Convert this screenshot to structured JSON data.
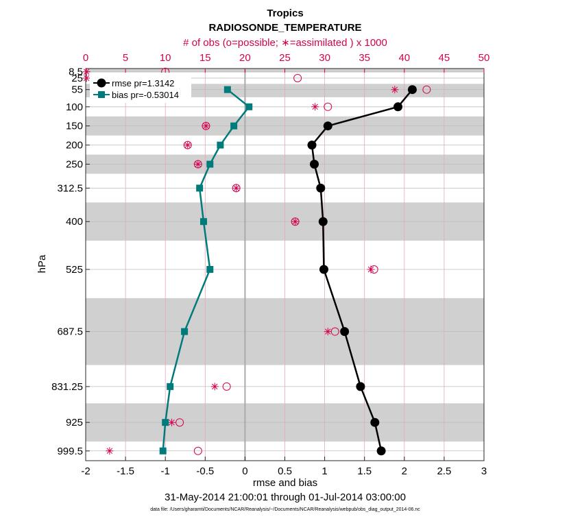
{
  "chart_data": {
    "type": "line",
    "title": "Tropics",
    "subtitle": "RADIOSONDE_TEMPERATURE",
    "top_axis_label": "# of obs (o=possible; ∗=assimilated ) x 1000",
    "xlabel": "rmse and bias",
    "ylabel": "hPa",
    "date_range": "31-May-2014 21:00:01 through 01-Jul-2014 03:00:00",
    "footnote": "data file: /Users/gharamti/Documents/NCAR/Reanalysis/~/Documents/NCAR/Reanalysis/webpub/obs_diag_output_2014-06.nc",
    "xlim": [
      -2,
      3
    ],
    "x_ticks": [
      -2,
      -1.5,
      -1,
      -0.5,
      0,
      0.5,
      1,
      1.5,
      2,
      2.5,
      3
    ],
    "x_tick_labels": [
      "-2",
      "-1.5",
      "-1",
      "-0.5",
      "0",
      "0.5",
      "1",
      "1.5",
      "2",
      "2.5",
      "3"
    ],
    "top_xlim": [
      0,
      50
    ],
    "top_ticks": [
      0,
      5,
      10,
      15,
      20,
      25,
      30,
      35,
      40,
      45,
      50
    ],
    "top_tick_labels": [
      "0",
      "5",
      "10",
      "15",
      "20",
      "25",
      "30",
      "35",
      "40",
      "45",
      "50"
    ],
    "ylim_hPa": [
      1025,
      0
    ],
    "levels": [
      8.5,
      25,
      55,
      100,
      150,
      200,
      250,
      312.5,
      400,
      525,
      687.5,
      831.25,
      925,
      999.5
    ],
    "level_labels": [
      "8.5",
      "25",
      "55",
      "100",
      "150",
      "200",
      "250",
      "312.5",
      "400",
      "525",
      "687.5",
      "831.25",
      "925",
      "999.5"
    ],
    "shaded_bands_hPa": [
      [
        0,
        10
      ],
      [
        40,
        75
      ],
      [
        125,
        175
      ],
      [
        225,
        275
      ],
      [
        350,
        450
      ],
      [
        600,
        775
      ],
      [
        875,
        975
      ]
    ],
    "series": [
      {
        "name": "rmse",
        "legend": "rmse pr=1.3142",
        "color": "#000000",
        "marker": "circle",
        "levels": [
          55,
          100,
          150,
          200,
          250,
          312.5,
          400,
          525,
          687.5,
          831.25,
          925,
          999.5
        ],
        "values": [
          2.1,
          1.92,
          1.04,
          0.84,
          0.87,
          0.95,
          0.98,
          0.99,
          1.25,
          1.45,
          1.63,
          1.71
        ]
      },
      {
        "name": "bias",
        "legend": "bias pr=-0.53014",
        "color": "#007b7b",
        "marker": "square",
        "levels": [
          55,
          100,
          150,
          200,
          250,
          312.5,
          400,
          525,
          687.5,
          831.25,
          925,
          999.5
        ],
        "values": [
          -0.22,
          0.05,
          -0.14,
          -0.31,
          -0.44,
          -0.57,
          -0.52,
          -0.44,
          -0.76,
          -0.94,
          -1.0,
          -1.03
        ]
      }
    ],
    "obs_counts": {
      "color": "#d6004f",
      "levels": [
        8.5,
        25,
        55,
        100,
        150,
        200,
        250,
        312.5,
        400,
        525,
        687.5,
        831.25,
        925,
        999.5
      ],
      "possible": [
        10.0,
        26.6,
        42.8,
        30.4,
        15.1,
        12.8,
        14.1,
        18.9,
        26.3,
        36.2,
        31.3,
        17.7,
        11.8,
        14.1
      ],
      "assimilated": [
        0.1,
        0.1,
        38.8,
        28.8,
        15.1,
        12.8,
        14.1,
        18.9,
        26.3,
        35.8,
        30.4,
        16.2,
        10.8,
        3.0
      ]
    }
  }
}
